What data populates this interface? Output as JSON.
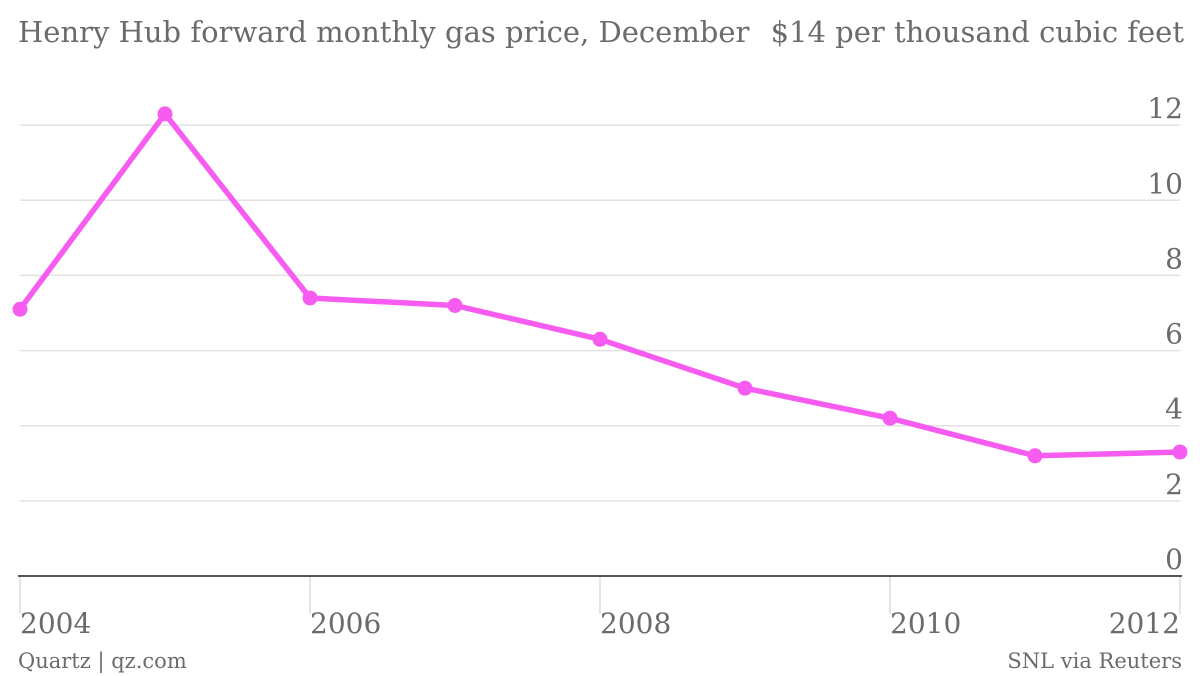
{
  "chart_data": {
    "type": "line",
    "title": "Henry Hub forward monthly gas price, December",
    "unit_label": "$14 per thousand cubic feet",
    "xlabel": "",
    "ylabel": "",
    "x": [
      2004,
      2005,
      2006,
      2007,
      2008,
      2009,
      2010,
      2011,
      2012
    ],
    "x_ticks": [
      "2004",
      "2006",
      "2008",
      "2010",
      "2012"
    ],
    "y_ticks": [
      "0",
      "2",
      "4",
      "6",
      "8",
      "10",
      "12"
    ],
    "xlim": [
      2004,
      2012
    ],
    "ylim": [
      0,
      14
    ],
    "grid": "horizontal",
    "series": [
      {
        "values": [
          7.1,
          12.3,
          7.4,
          7.2,
          6.3,
          5.0,
          4.2,
          3.2,
          3.3
        ]
      }
    ],
    "colors": {
      "line": "#f75cf0",
      "grid": "#e2e2e2",
      "axis": "#555555"
    }
  },
  "footer": {
    "left": "Quartz | qz.com",
    "right": "SNL via Reuters"
  }
}
